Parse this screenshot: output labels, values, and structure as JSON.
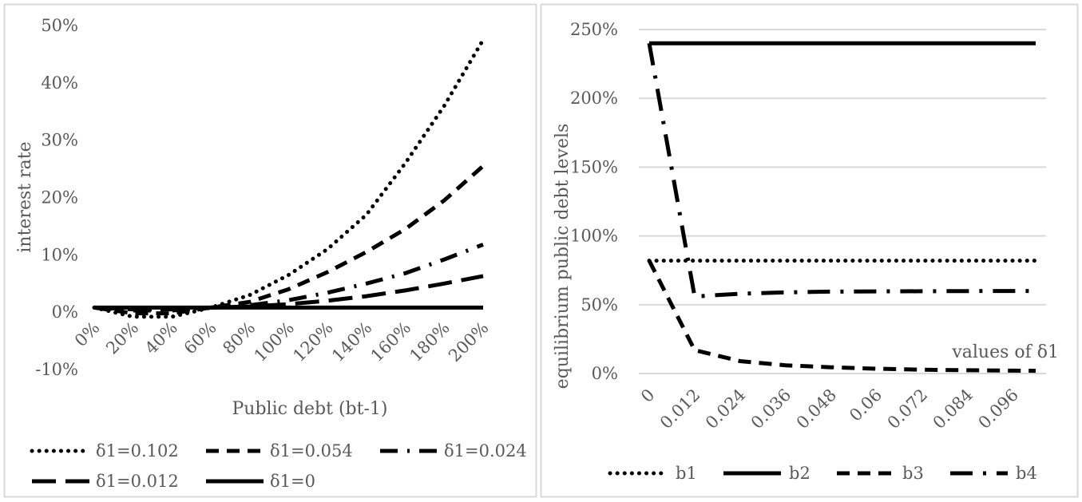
{
  "chart_data": [
    {
      "type": "line",
      "title": "",
      "xlabel": "Public debt (bt-1)",
      "ylabel": "interest rate",
      "ylim": [
        -0.1,
        0.5
      ],
      "y_ticks": [
        "50%",
        "40%",
        "30%",
        "20%",
        "10%",
        "0%",
        "-10%"
      ],
      "y_tick_values": [
        0.5,
        0.4,
        0.3,
        0.2,
        0.1,
        0.0,
        -0.1
      ],
      "categories": [
        "0%",
        "20%",
        "40%",
        "60%",
        "80%",
        "100%",
        "120%",
        "140%",
        "160%",
        "180%",
        "200%"
      ],
      "x": [
        0,
        0.2,
        0.4,
        0.6,
        0.8,
        1.0,
        1.2,
        1.4,
        1.6,
        1.8,
        2.0
      ],
      "grid": false,
      "legend_position": "bottom",
      "series": [
        {
          "name": "δ1=0.102",
          "style": "dotted",
          "values": [
            0.008,
            -0.008,
            -0.008,
            0.008,
            0.03,
            0.065,
            0.11,
            0.17,
            0.26,
            0.36,
            0.475
          ]
        },
        {
          "name": "δ1=0.054",
          "style": "dashed",
          "values": [
            0.008,
            -0.002,
            -0.002,
            0.008,
            0.018,
            0.04,
            0.07,
            0.105,
            0.145,
            0.195,
            0.255
          ]
        },
        {
          "name": "δ1=0.024",
          "style": "dash-dot",
          "values": [
            0.008,
            0.003,
            0.003,
            0.008,
            0.012,
            0.021,
            0.034,
            0.05,
            0.068,
            0.092,
            0.118
          ]
        },
        {
          "name": "δ1=0.012",
          "style": "long-dash",
          "values": [
            0.008,
            0.005,
            0.005,
            0.008,
            0.01,
            0.014,
            0.02,
            0.028,
            0.038,
            0.05,
            0.063
          ]
        },
        {
          "name": "δ1=0",
          "style": "solid",
          "values": [
            0.008,
            0.008,
            0.008,
            0.008,
            0.008,
            0.008,
            0.008,
            0.008,
            0.008,
            0.008,
            0.008
          ]
        }
      ]
    },
    {
      "type": "line",
      "title": "",
      "xlabel": "values of δ1",
      "ylabel": "equilibrium public debt levels",
      "ylim": [
        0,
        2.5
      ],
      "y_ticks": [
        "250%",
        "200%",
        "150%",
        "100%",
        "50%",
        "0%"
      ],
      "y_tick_values": [
        2.5,
        2.0,
        1.5,
        1.0,
        0.5,
        0.0
      ],
      "categories": [
        "0",
        "0.012",
        "0.024",
        "0.036",
        "0.048",
        "0.06",
        "0.072",
        "0.084",
        "0.096"
      ],
      "x": [
        0,
        0.012,
        0.024,
        0.036,
        0.048,
        0.06,
        0.072,
        0.084,
        0.096
      ],
      "x_end": 0.102,
      "grid": true,
      "legend_position": "bottom",
      "series": [
        {
          "name": "b1",
          "style": "dotted",
          "points": [
            [
              0,
              0.82
            ],
            [
              0.102,
              0.82
            ]
          ]
        },
        {
          "name": "b2",
          "style": "solid",
          "points": [
            [
              0,
              2.4
            ],
            [
              0.102,
              2.4
            ]
          ]
        },
        {
          "name": "b3",
          "style": "dashed",
          "points": [
            [
              0,
              0.82
            ],
            [
              0.012,
              0.17
            ],
            [
              0.024,
              0.09
            ],
            [
              0.036,
              0.06
            ],
            [
              0.048,
              0.045
            ],
            [
              0.06,
              0.035
            ],
            [
              0.072,
              0.028
            ],
            [
              0.084,
              0.024
            ],
            [
              0.102,
              0.02
            ]
          ]
        },
        {
          "name": "b4",
          "style": "long-dash-dot",
          "points": [
            [
              0,
              2.4
            ],
            [
              0.012,
              0.56
            ],
            [
              0.024,
              0.58
            ],
            [
              0.036,
              0.59
            ],
            [
              0.048,
              0.595
            ],
            [
              0.06,
              0.597
            ],
            [
              0.072,
              0.598
            ],
            [
              0.084,
              0.599
            ],
            [
              0.102,
              0.6
            ]
          ]
        }
      ]
    }
  ],
  "colors": {
    "line": "#000000",
    "text": "#595959",
    "grid": "#d9d9d9",
    "border": "#d9d9d9"
  }
}
